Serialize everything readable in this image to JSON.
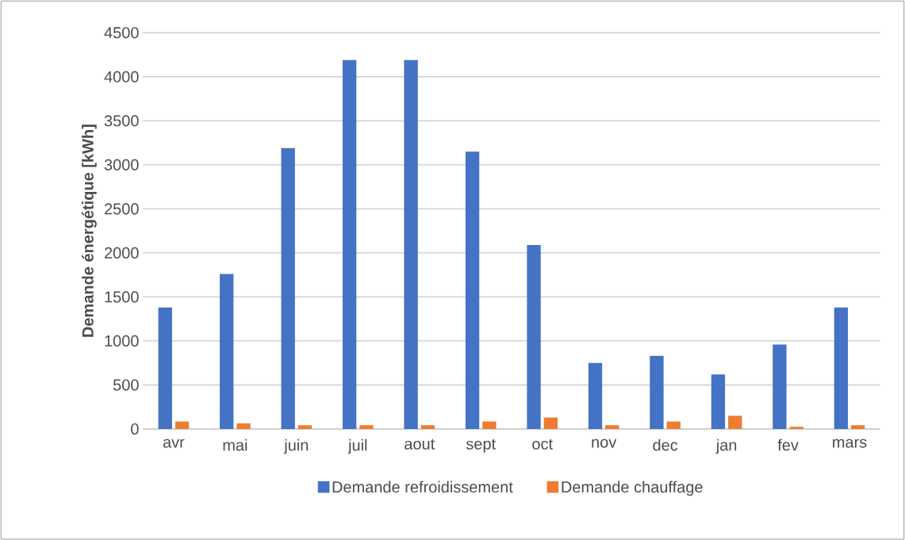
{
  "chart_data": {
    "type": "bar",
    "ylabel": "Demande énergétique [kWh]",
    "categories": [
      "avr",
      "mai",
      "juin",
      "juil",
      "aout",
      "sept",
      "oct",
      "nov",
      "dec",
      "jan",
      "fev",
      "mars"
    ],
    "series": [
      {
        "name": "Demande refroidissement",
        "color": "#4472c4",
        "values": [
          1380,
          1760,
          3190,
          4190,
          4190,
          3150,
          2090,
          750,
          830,
          620,
          960,
          1380
        ]
      },
      {
        "name": "Demande chauffage",
        "color": "#ed7d31",
        "values": [
          85,
          64,
          43,
          43,
          43,
          85,
          130,
          43,
          85,
          150,
          25,
          43
        ]
      }
    ],
    "ylim": [
      0,
      4500
    ],
    "yticks": [
      0,
      500,
      1000,
      1500,
      2000,
      2500,
      3000,
      3500,
      4000,
      4500
    ],
    "grid": "y",
    "legend": "bottom"
  }
}
